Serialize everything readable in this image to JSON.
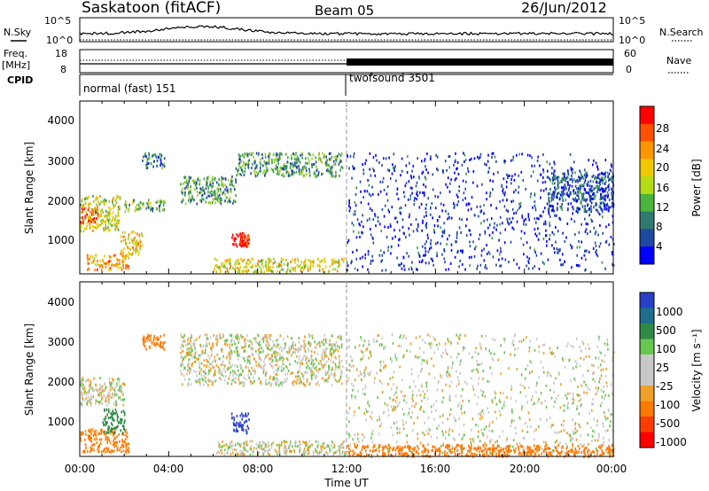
{
  "header": {
    "station": "Saskatoon (fitACF)",
    "beam": "Beam 05",
    "date": "26/Jun/2012"
  },
  "noise_panel": {
    "left_label": "N.Sky",
    "right_label": "N.Search",
    "left_ticks": [
      "10^5",
      "10^0"
    ],
    "right_ticks": [
      "10^5",
      "10^0"
    ]
  },
  "freq_panel": {
    "left_label_1": "Freq.",
    "left_label_2": "[MHz]",
    "right_label": "Nave",
    "left_ticks": [
      "18",
      "8"
    ],
    "right_ticks": [
      "60",
      "0"
    ]
  },
  "cpid": {
    "label": "CPID",
    "modes": [
      {
        "name": "normal (fast) 151",
        "start_hour": 0
      },
      {
        "name": "twofsound 3501",
        "start_hour": 12
      }
    ]
  },
  "x_axis": {
    "label": "Time UT",
    "ticks": [
      "00:00",
      "04:00",
      "08:00",
      "12:00",
      "16:00",
      "20:00",
      "00:00"
    ]
  },
  "power_panel": {
    "ylabel": "Slant Range [km]",
    "yticks": [
      "4000",
      "3000",
      "2000",
      "1000"
    ],
    "colorbar_label": "Power [dB]",
    "colorbar_ticks": [
      "28",
      "24",
      "20",
      "16",
      "12",
      "8",
      "4"
    ],
    "colorbar_colors": [
      "#ff0000",
      "#ff5000",
      "#ff9600",
      "#f0c800",
      "#b4dc14",
      "#4ab43c",
      "#2e7a6e",
      "#1e4aa0",
      "#0000ff"
    ]
  },
  "velocity_panel": {
    "ylabel": "Slant Range [km]",
    "yticks": [
      "4000",
      "3000",
      "2000",
      "1000"
    ],
    "colorbar_label": "Velocity [m s⁻¹]",
    "colorbar_ticks": [
      "1000",
      "500",
      "100",
      "25",
      "-25",
      "-100",
      "-500",
      "-1000"
    ],
    "colorbar_colors": [
      "#2840c8",
      "#1e6e8c",
      "#2e8a46",
      "#64c850",
      "#c8c8c8",
      "#c8c8c8",
      "#f0a028",
      "#ff7800",
      "#ff3c00",
      "#ff0000"
    ]
  },
  "chart_data": {
    "type": "heatmap",
    "title": "Saskatoon (fitACF)",
    "xlabel": "Time UT",
    "ylabel": "Slant Range [km]",
    "xlim_hours": [
      0,
      24
    ],
    "ylim_km": [
      180,
      4600
    ],
    "power_echo_regions_dB": [
      {
        "t": [
          0.0,
          1.8
        ],
        "r": [
          1300,
          2200
        ],
        "level": 18
      },
      {
        "t": [
          0.0,
          0.8
        ],
        "r": [
          1500,
          1900
        ],
        "level": 26
      },
      {
        "t": [
          0.3,
          2.2
        ],
        "r": [
          300,
          700
        ],
        "level": 22
      },
      {
        "t": [
          1.8,
          2.8
        ],
        "r": [
          700,
          1300
        ],
        "level": 20
      },
      {
        "t": [
          2.0,
          3.8
        ],
        "r": [
          1800,
          2100
        ],
        "level": 14
      },
      {
        "t": [
          2.8,
          3.8
        ],
        "r": [
          2900,
          3300
        ],
        "level": 10
      },
      {
        "t": [
          6.8,
          7.4
        ],
        "r": [
          900,
          1300
        ],
        "level": 28
      },
      {
        "t": [
          7.2,
          7.6
        ],
        "r": [
          900,
          1200
        ],
        "level": 26
      },
      {
        "t": [
          4.5,
          7.0
        ],
        "r": [
          2000,
          2700
        ],
        "level": 12
      },
      {
        "t": [
          7.0,
          11.8
        ],
        "r": [
          2700,
          3300
        ],
        "level": 12
      },
      {
        "t": [
          6.0,
          12.0
        ],
        "r": [
          250,
          600
        ],
        "level": 18
      },
      {
        "t": [
          12.0,
          24.0
        ],
        "r": [
          300,
          3300
        ],
        "level": 6
      },
      {
        "t": [
          21.0,
          24.0
        ],
        "r": [
          1800,
          2800
        ],
        "level": 8
      }
    ],
    "velocity_echo_regions_ms": [
      {
        "t": [
          0.0,
          2.0
        ],
        "r": [
          1500,
          2200
        ],
        "level": 0
      },
      {
        "t": [
          0.0,
          2.2
        ],
        "r": [
          300,
          900
        ],
        "level": -150
      },
      {
        "t": [
          1.0,
          2.0
        ],
        "r": [
          800,
          1400
        ],
        "level": 200
      },
      {
        "t": [
          2.8,
          3.8
        ],
        "r": [
          2900,
          3300
        ],
        "level": -200
      },
      {
        "t": [
          6.8,
          7.6
        ],
        "r": [
          800,
          1300
        ],
        "level": 600
      },
      {
        "t": [
          4.5,
          11.8
        ],
        "r": [
          2000,
          3300
        ],
        "level": 0
      },
      {
        "t": [
          6.0,
          12.0
        ],
        "r": [
          250,
          600
        ],
        "level": 0
      },
      {
        "t": [
          12.0,
          24.0
        ],
        "r": [
          300,
          3300
        ],
        "level": 0
      },
      {
        "t": [
          12.0,
          24.0
        ],
        "r": [
          200,
          500
        ],
        "level": -200
      }
    ]
  }
}
